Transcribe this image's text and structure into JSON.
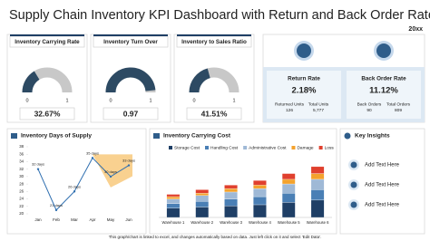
{
  "header": {
    "title": "Supply Chain Inventory KPI Dashboard with Return and Back Order Rate",
    "year": "20xx"
  },
  "gauges": [
    {
      "title": "Inventory Carrying Rate",
      "value": 0.3267,
      "value_label": "32.67%",
      "min": 0,
      "max": 1,
      "color": "#2d4a63"
    },
    {
      "title": "Inventory Turn Over",
      "value": 0.97,
      "min": 0,
      "max": 1,
      "color": "#2d4a63"
    },
    {
      "title": "Inventory to Sales Ratio",
      "value": 0.4151,
      "value_label": "41.51%",
      "min": 0,
      "max": 1,
      "color": "#2d4a63"
    }
  ],
  "rates": [
    {
      "title": "Return Rate",
      "value": "2.18%",
      "stats": [
        {
          "label": "Returned Units",
          "value": "126"
        },
        {
          "label": "Total Units",
          "value": "5,777"
        }
      ]
    },
    {
      "title": "Back Order Rate",
      "value": "11.12%",
      "stats": [
        {
          "label": "Back Orders",
          "value": "90"
        },
        {
          "label": "Total Orders",
          "value": "809"
        }
      ]
    }
  ],
  "chart_data": [
    {
      "type": "line",
      "title": "Inventory Days of Supply",
      "categories": [
        "Jan",
        "Feb",
        "Mar",
        "Apr",
        "May",
        "Jun"
      ],
      "values": [
        32,
        21,
        26,
        35,
        30,
        33
      ],
      "value_labels": [
        "32 days",
        "21 days",
        "26 days",
        "35 days",
        "30 days",
        "33 days"
      ],
      "color": "#2f6fb0",
      "ylim": [
        20,
        38
      ],
      "yticks": [
        20,
        22,
        24,
        26,
        28,
        30,
        32,
        34,
        36,
        38
      ],
      "grid": false
    },
    {
      "type": "stacked_bar",
      "title": "Inventory Carrying Cost",
      "categories": [
        "Warehouse 1",
        "Warehouse 2",
        "Warehouse 3",
        "Warehouse 4",
        "Warehouse 5",
        "Warehouse 6"
      ],
      "series": [
        {
          "name": "Storage Cost",
          "color": "#1f3f66",
          "values": [
            8,
            9,
            10,
            11,
            13,
            15
          ]
        },
        {
          "name": "Handling Cost",
          "color": "#4a7fb5",
          "values": [
            4,
            5,
            6,
            7,
            8,
            9
          ]
        },
        {
          "name": "Administrative Cost",
          "color": "#9fb9d6",
          "values": [
            4,
            5,
            6,
            7,
            8,
            9
          ]
        },
        {
          "name": "Damage",
          "color": "#f4a22d",
          "values": [
            2,
            2,
            3,
            3,
            4,
            5
          ]
        },
        {
          "name": "Loss",
          "color": "#e0402e",
          "values": [
            2,
            3,
            3,
            4,
            5,
            6
          ]
        }
      ],
      "legend": "top"
    }
  ],
  "insights": {
    "title": "Key Insights",
    "items": [
      "Add Text Here",
      "Add Text Here",
      "Add Text Here"
    ]
  },
  "footer": "This graph/chart is linked to excel, and changes automatically based on data. Just left click on it and select 'Edit Data'."
}
